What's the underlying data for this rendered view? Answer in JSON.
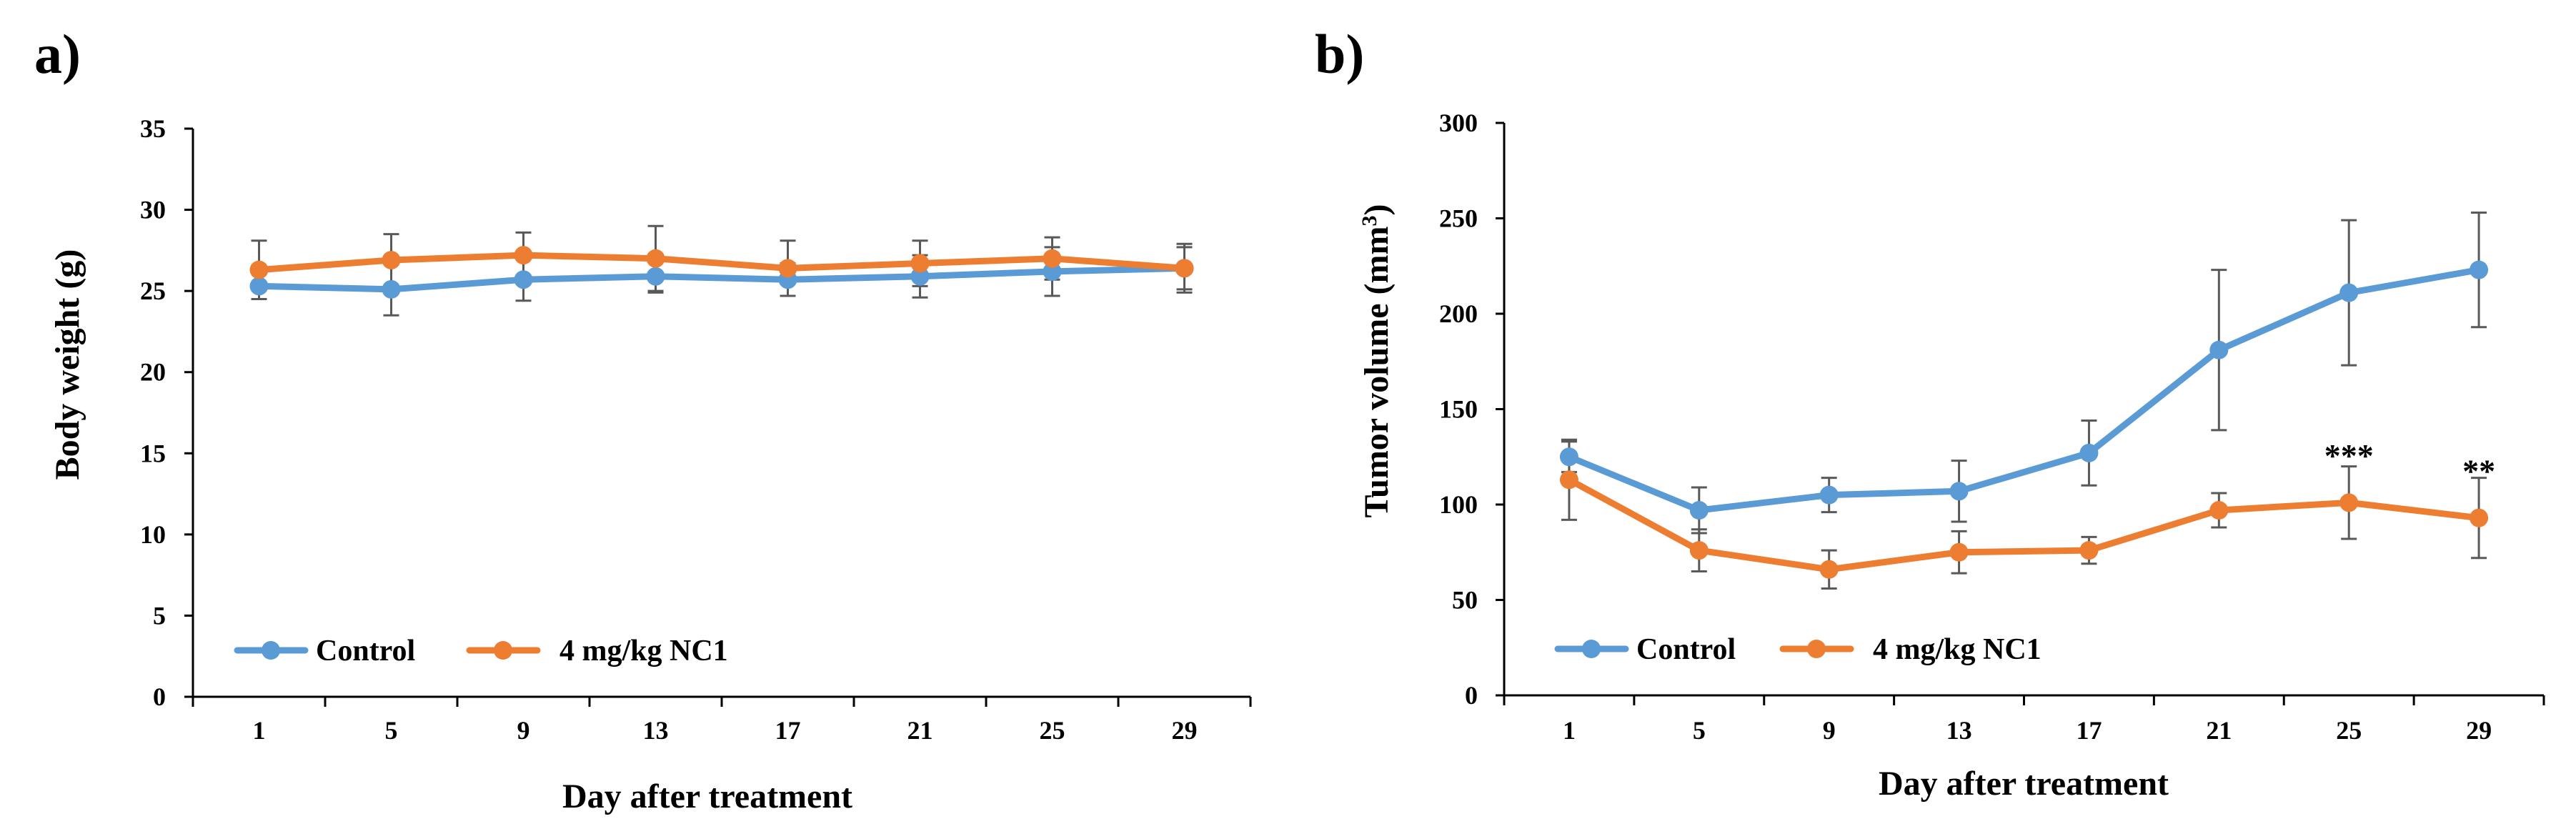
{
  "chart_data": [
    {
      "panel": "a)",
      "type": "line",
      "xlabel": "Day after treatment",
      "ylabel": "Body weight (g)",
      "categories": [
        "1",
        "5",
        "9",
        "13",
        "17",
        "21",
        "25",
        "29"
      ],
      "ylim": [
        0,
        35
      ],
      "yticks": [
        "0",
        "5",
        "10",
        "15",
        "20",
        "25",
        "30",
        "35"
      ],
      "series": [
        {
          "name": "Control",
          "color": "#5b9bd5",
          "values": [
            25.3,
            25.1,
            25.7,
            25.9,
            25.7,
            25.9,
            26.2,
            26.4
          ],
          "errors": [
            0.8,
            1.6,
            1.3,
            1.0,
            1.0,
            1.3,
            1.5,
            1.3
          ]
        },
        {
          "name": "4 mg/kg NC1",
          "color": "#ed7d31",
          "values": [
            26.3,
            26.9,
            27.2,
            27.0,
            26.4,
            26.7,
            27.0,
            26.4
          ],
          "errors": [
            1.8,
            1.6,
            1.4,
            2.0,
            1.7,
            1.4,
            1.3,
            1.5
          ]
        }
      ],
      "annotations": [],
      "legend": "bottom-left"
    },
    {
      "panel": "b)",
      "type": "line",
      "xlabel": "Day after treatment",
      "ylabel": "Tumor volume (mm",
      "ylabel_sup": "3",
      "ylabel_end": ")",
      "categories": [
        "1",
        "5",
        "9",
        "13",
        "17",
        "21",
        "25",
        "29"
      ],
      "ylim": [
        0,
        300
      ],
      "yticks": [
        "0",
        "50",
        "100",
        "150",
        "200",
        "250",
        "300"
      ],
      "series": [
        {
          "name": "Control",
          "color": "#5b9bd5",
          "values": [
            125,
            97,
            105,
            107,
            127,
            181,
            211,
            223
          ],
          "errors": [
            8,
            12,
            9,
            16,
            17,
            42,
            38,
            30
          ]
        },
        {
          "name": "4 mg/kg NC1",
          "color": "#ed7d31",
          "values": [
            113,
            76,
            66,
            75,
            76,
            97,
            101,
            93
          ],
          "errors": [
            21,
            11,
            10,
            11,
            7,
            9,
            19,
            21
          ]
        }
      ],
      "annotations": [
        {
          "text": "***",
          "category_index": 6,
          "y": 128
        },
        {
          "text": "**",
          "category_index": 7,
          "y": 120
        }
      ],
      "legend": "bottom-left"
    }
  ]
}
